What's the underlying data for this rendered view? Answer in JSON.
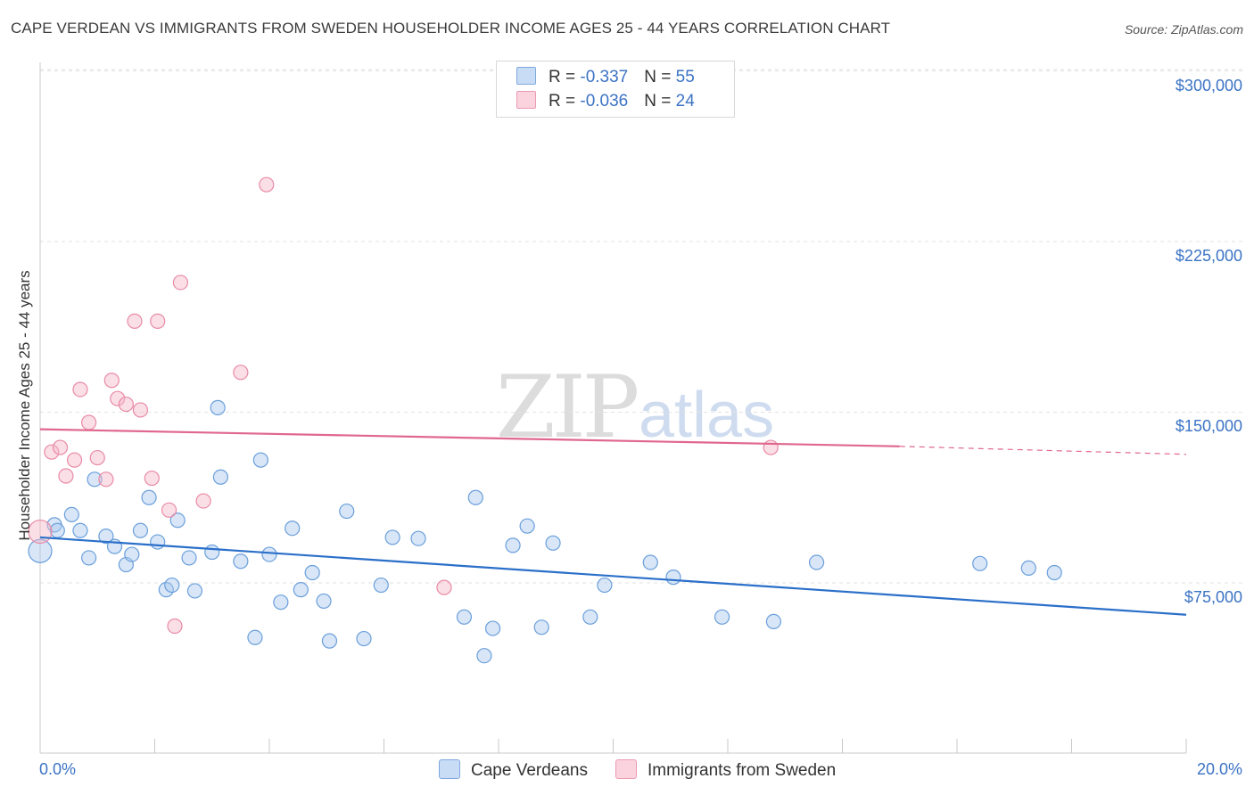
{
  "title": "CAPE VERDEAN VS IMMIGRANTS FROM SWEDEN HOUSEHOLDER INCOME AGES 25 - 44 YEARS CORRELATION CHART",
  "source": "Source: ZipAtlas.com",
  "watermark": {
    "zip": "ZIP",
    "atlas": "atlas"
  },
  "legend": [
    {
      "r_label": "R = ",
      "r_value": "-0.337",
      "n_label": "N = ",
      "n_value": "55",
      "color": "#a9c8ee"
    },
    {
      "r_label": "R = ",
      "r_value": "-0.036",
      "n_label": "N = ",
      "n_value": "24",
      "color": "#f5b9ca"
    }
  ],
  "chart_data": {
    "type": "scatter",
    "title": "CAPE VERDEAN VS IMMIGRANTS FROM SWEDEN HOUSEHOLDER INCOME AGES 25 - 44 YEARS CORRELATION CHART",
    "xlabel": "",
    "ylabel": "Householder Income Ages 25 - 44 years",
    "xlim": [
      0,
      20
    ],
    "ylim": [
      10000,
      315000
    ],
    "x_tick_labels": [
      "0.0%",
      "20.0%"
    ],
    "y_ticks": [
      75000,
      150000,
      225000,
      300000
    ],
    "y_tick_labels": [
      "$75,000",
      "$150,000",
      "$225,000",
      "$300,000"
    ],
    "grid": true,
    "legend_position": "bottom",
    "series": [
      {
        "name": "Cape Verdeans",
        "color": "#a9c8ee",
        "stroke": "#6a9fdb",
        "trend_color": "#2a6fc9",
        "trend": {
          "x0": 0,
          "y0": 95000,
          "x1": 20,
          "y1": 61000
        },
        "points": [
          [
            0.0,
            89000
          ],
          [
            0.25,
            100500
          ],
          [
            0.3,
            98000
          ],
          [
            0.55,
            105000
          ],
          [
            0.7,
            98000
          ],
          [
            0.85,
            86000
          ],
          [
            0.95,
            120500
          ],
          [
            1.15,
            95500
          ],
          [
            1.3,
            91000
          ],
          [
            1.5,
            83000
          ],
          [
            1.6,
            87500
          ],
          [
            1.75,
            98000
          ],
          [
            1.9,
            112500
          ],
          [
            2.05,
            93000
          ],
          [
            2.2,
            72000
          ],
          [
            2.3,
            74000
          ],
          [
            2.4,
            102500
          ],
          [
            2.6,
            86000
          ],
          [
            2.7,
            71500
          ],
          [
            3.0,
            88500
          ],
          [
            3.1,
            152000
          ],
          [
            3.15,
            121500
          ],
          [
            3.5,
            84500
          ],
          [
            3.75,
            51000
          ],
          [
            3.85,
            129000
          ],
          [
            4.0,
            87500
          ],
          [
            4.2,
            66500
          ],
          [
            4.4,
            99000
          ],
          [
            4.55,
            72000
          ],
          [
            4.75,
            79500
          ],
          [
            4.95,
            67000
          ],
          [
            5.05,
            49500
          ],
          [
            5.35,
            106500
          ],
          [
            5.65,
            50500
          ],
          [
            5.95,
            74000
          ],
          [
            6.15,
            95000
          ],
          [
            6.6,
            94500
          ],
          [
            7.4,
            60000
          ],
          [
            7.6,
            112500
          ],
          [
            7.75,
            43000
          ],
          [
            7.9,
            55000
          ],
          [
            8.25,
            91500
          ],
          [
            8.5,
            100000
          ],
          [
            8.75,
            55500
          ],
          [
            8.95,
            92500
          ],
          [
            9.6,
            60000
          ],
          [
            9.85,
            74000
          ],
          [
            10.65,
            84000
          ],
          [
            11.05,
            77500
          ],
          [
            11.9,
            60000
          ],
          [
            12.8,
            58000
          ],
          [
            13.55,
            84000
          ],
          [
            16.4,
            83500
          ],
          [
            17.25,
            81500
          ],
          [
            17.7,
            79500
          ]
        ]
      },
      {
        "name": "Immigrants from Sweden",
        "color": "#f5b9ca",
        "stroke": "#e98aa6",
        "trend_color": "#e0678e",
        "trend": {
          "x0": 0,
          "y0": 142500,
          "x1": 15,
          "y1": 135000,
          "dash_to_x": 20,
          "dash_to_y": 131500
        },
        "points": [
          [
            0.0,
            97500
          ],
          [
            0.2,
            132500
          ],
          [
            0.35,
            134500
          ],
          [
            0.45,
            122000
          ],
          [
            0.6,
            129000
          ],
          [
            0.7,
            160000
          ],
          [
            0.85,
            145500
          ],
          [
            1.0,
            130000
          ],
          [
            1.15,
            120500
          ],
          [
            1.25,
            164000
          ],
          [
            1.35,
            156000
          ],
          [
            1.5,
            153500
          ],
          [
            1.65,
            190000
          ],
          [
            1.75,
            151000
          ],
          [
            1.95,
            121000
          ],
          [
            2.05,
            190000
          ],
          [
            2.25,
            107000
          ],
          [
            2.35,
            56000
          ],
          [
            2.45,
            207000
          ],
          [
            2.85,
            111000
          ],
          [
            3.5,
            167500
          ],
          [
            3.95,
            250000
          ],
          [
            7.05,
            73000
          ],
          [
            12.75,
            134500
          ]
        ]
      }
    ]
  },
  "bottom_legend": [
    {
      "label": "Cape Verdeans",
      "color": "#a9c8ee"
    },
    {
      "label": "Immigrants from Sweden",
      "color": "#f5b9ca"
    }
  ]
}
